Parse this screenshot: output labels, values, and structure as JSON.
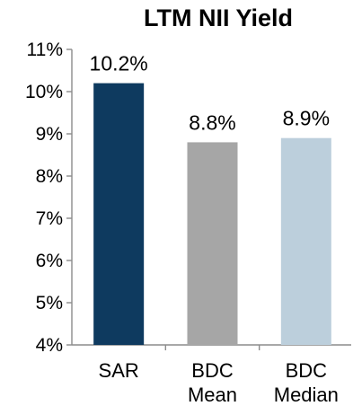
{
  "chart_data": {
    "type": "bar",
    "title": "LTM NII Yield",
    "categories": [
      [
        "SAR"
      ],
      [
        "BDC",
        "Mean"
      ],
      [
        "BDC",
        "Median"
      ]
    ],
    "values": [
      10.2,
      8.8,
      8.9
    ],
    "data_labels": [
      "10.2%",
      "8.8%",
      "8.9%"
    ],
    "colors": [
      "#0e3a5f",
      "#a6a6a6",
      "#bccfdc"
    ],
    "ylim": [
      4,
      11
    ],
    "yticks": [
      4,
      5,
      6,
      7,
      8,
      9,
      10,
      11
    ],
    "ytick_labels": [
      "4%",
      "5%",
      "6%",
      "7%",
      "8%",
      "9%",
      "10%",
      "11%"
    ],
    "xlabel": "",
    "ylabel": "",
    "grid": false,
    "legend": "none"
  }
}
